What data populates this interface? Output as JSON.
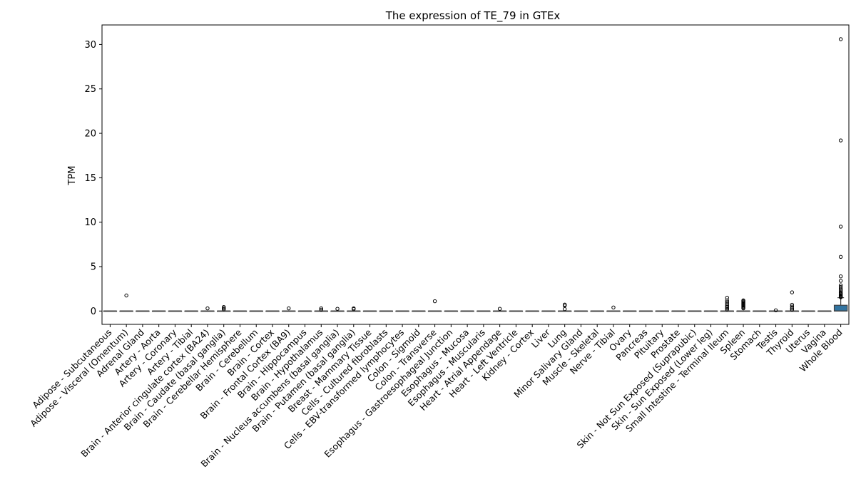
{
  "chart_data": {
    "type": "box",
    "title": "The expression of TE_79 in GTEx",
    "xlabel": "",
    "ylabel": "TPM",
    "ylim": [
      -1.5,
      32.2
    ],
    "yticks": [
      0,
      5,
      10,
      15,
      20,
      25,
      30
    ],
    "grid": false,
    "legend": "none",
    "box_color": "#3274a1",
    "categories": [
      "Adipose - Subcutaneous",
      "Adipose - Visceral (Omentum)",
      "Adrenal Gland",
      "Artery - Aorta",
      "Artery - Coronary",
      "Artery - Tibial",
      "Brain - Anterior cingulate cortex (BA24)",
      "Brain - Caudate (basal ganglia)",
      "Brain - Cerebellar Hemisphere",
      "Brain - Cerebellum",
      "Brain - Cortex",
      "Brain - Frontal Cortex (BA9)",
      "Brain - Hippocampus",
      "Brain - Hypothalamus",
      "Brain - Nucleus accumbens (basal ganglia)",
      "Brain - Putamen (basal ganglia)",
      "Breast - Mammary Tissue",
      "Cells - Cultured fibroblasts",
      "Cells - EBV-transformed lymphocytes",
      "Colon - Sigmoid",
      "Colon - Transverse",
      "Esophagus - Gastroesophageal Junction",
      "Esophagus - Mucosa",
      "Esophagus - Muscularis",
      "Heart - Atrial Appendage",
      "Heart - Left Ventricle",
      "Kidney - Cortex",
      "Liver",
      "Lung",
      "Minor Salivary Gland",
      "Muscle - Skeletal",
      "Nerve - Tibial",
      "Ovary",
      "Pancreas",
      "Pituitary",
      "Prostate",
      "Skin - Not Sun Exposed (Suprapubic)",
      "Skin - Sun Exposed (Lower leg)",
      "Small Intestine - Terminal Ileum",
      "Spleen",
      "Stomach",
      "Testis",
      "Thyroid",
      "Uterus",
      "Vagina",
      "Whole Blood"
    ],
    "boxes": [
      {
        "q1": 0,
        "median": 0,
        "q3": 0,
        "whisker_high": 0,
        "outliers": []
      },
      {
        "q1": 0,
        "median": 0,
        "q3": 0,
        "whisker_high": 0,
        "outliers": [
          1.75
        ]
      },
      {
        "q1": 0,
        "median": 0,
        "q3": 0,
        "whisker_high": 0,
        "outliers": []
      },
      {
        "q1": 0,
        "median": 0,
        "q3": 0,
        "whisker_high": 0,
        "outliers": []
      },
      {
        "q1": 0,
        "median": 0,
        "q3": 0,
        "whisker_high": 0,
        "outliers": []
      },
      {
        "q1": 0,
        "median": 0,
        "q3": 0,
        "whisker_high": 0,
        "outliers": []
      },
      {
        "q1": 0,
        "median": 0,
        "q3": 0,
        "whisker_high": 0,
        "outliers": [
          0.3
        ]
      },
      {
        "q1": 0,
        "median": 0,
        "q3": 0,
        "whisker_high": 0,
        "outliers": [
          0.45,
          0.3,
          0.2
        ]
      },
      {
        "q1": 0,
        "median": 0,
        "q3": 0,
        "whisker_high": 0,
        "outliers": []
      },
      {
        "q1": 0,
        "median": 0,
        "q3": 0,
        "whisker_high": 0,
        "outliers": []
      },
      {
        "q1": 0,
        "median": 0,
        "q3": 0,
        "whisker_high": 0,
        "outliers": []
      },
      {
        "q1": 0,
        "median": 0,
        "q3": 0,
        "whisker_high": 0,
        "outliers": [
          0.3
        ]
      },
      {
        "q1": 0,
        "median": 0,
        "q3": 0,
        "whisker_high": 0,
        "outliers": []
      },
      {
        "q1": 0,
        "median": 0,
        "q3": 0,
        "whisker_high": 0,
        "outliers": [
          0.3,
          0.15
        ]
      },
      {
        "q1": 0,
        "median": 0,
        "q3": 0,
        "whisker_high": 0,
        "outliers": [
          0.25
        ]
      },
      {
        "q1": 0,
        "median": 0,
        "q3": 0,
        "whisker_high": 0,
        "outliers": [
          0.3,
          0.22
        ]
      },
      {
        "q1": 0,
        "median": 0,
        "q3": 0,
        "whisker_high": 0,
        "outliers": []
      },
      {
        "q1": 0,
        "median": 0,
        "q3": 0,
        "whisker_high": 0,
        "outliers": []
      },
      {
        "q1": 0,
        "median": 0,
        "q3": 0,
        "whisker_high": 0,
        "outliers": []
      },
      {
        "q1": 0,
        "median": 0,
        "q3": 0,
        "whisker_high": 0,
        "outliers": []
      },
      {
        "q1": 0,
        "median": 0,
        "q3": 0,
        "whisker_high": 0,
        "outliers": [
          1.1
        ]
      },
      {
        "q1": 0,
        "median": 0,
        "q3": 0,
        "whisker_high": 0,
        "outliers": []
      },
      {
        "q1": 0,
        "median": 0,
        "q3": 0,
        "whisker_high": 0,
        "outliers": []
      },
      {
        "q1": 0,
        "median": 0,
        "q3": 0,
        "whisker_high": 0,
        "outliers": []
      },
      {
        "q1": 0,
        "median": 0,
        "q3": 0,
        "whisker_high": 0,
        "outliers": [
          0.25
        ]
      },
      {
        "q1": 0,
        "median": 0,
        "q3": 0,
        "whisker_high": 0,
        "outliers": []
      },
      {
        "q1": 0,
        "median": 0,
        "q3": 0,
        "whisker_high": 0,
        "outliers": []
      },
      {
        "q1": 0,
        "median": 0,
        "q3": 0,
        "whisker_high": 0,
        "outliers": []
      },
      {
        "q1": 0,
        "median": 0,
        "q3": 0,
        "whisker_high": 0,
        "outliers": [
          0.72,
          0.62,
          0.22
        ]
      },
      {
        "q1": 0,
        "median": 0,
        "q3": 0,
        "whisker_high": 0,
        "outliers": []
      },
      {
        "q1": 0,
        "median": 0,
        "q3": 0,
        "whisker_high": 0,
        "outliers": []
      },
      {
        "q1": 0,
        "median": 0,
        "q3": 0,
        "whisker_high": 0,
        "outliers": [
          0.4
        ]
      },
      {
        "q1": 0,
        "median": 0,
        "q3": 0,
        "whisker_high": 0,
        "outliers": []
      },
      {
        "q1": 0,
        "median": 0,
        "q3": 0,
        "whisker_high": 0,
        "outliers": []
      },
      {
        "q1": 0,
        "median": 0,
        "q3": 0,
        "whisker_high": 0,
        "outliers": []
      },
      {
        "q1": 0,
        "median": 0,
        "q3": 0,
        "whisker_high": 0,
        "outliers": []
      },
      {
        "q1": 0,
        "median": 0,
        "q3": 0,
        "whisker_high": 0,
        "outliers": []
      },
      {
        "q1": 0,
        "median": 0,
        "q3": 0,
        "whisker_high": 0,
        "outliers": []
      },
      {
        "q1": 0,
        "median": 0,
        "q3": 0,
        "whisker_high": 0,
        "outliers": [
          1.5,
          1.2,
          1.0,
          0.8,
          0.6,
          0.45,
          0.3,
          0.18
        ]
      },
      {
        "q1": 0,
        "median": 0,
        "q3": 0,
        "whisker_high": 0,
        "outliers": [
          1.2,
          1.1,
          1.0,
          0.9,
          0.8,
          0.7,
          0.6,
          0.5,
          0.4,
          0.3
        ]
      },
      {
        "q1": 0,
        "median": 0,
        "q3": 0,
        "whisker_high": 0,
        "outliers": []
      },
      {
        "q1": 0,
        "median": 0,
        "q3": 0,
        "whisker_high": 0,
        "outliers": [
          0.08
        ]
      },
      {
        "q1": 0,
        "median": 0,
        "q3": 0,
        "whisker_high": 0,
        "outliers": [
          2.1,
          0.7,
          0.5,
          0.3,
          0.15
        ]
      },
      {
        "q1": 0,
        "median": 0,
        "q3": 0,
        "whisker_high": 0,
        "outliers": []
      },
      {
        "q1": 0,
        "median": 0,
        "q3": 0,
        "whisker_high": 0,
        "outliers": []
      },
      {
        "q1": 0,
        "median": 0,
        "q3": 0.65,
        "whisker_high": 1.5,
        "outliers": [
          30.6,
          19.2,
          9.5,
          6.1,
          3.9,
          3.4,
          2.9,
          2.7,
          2.5,
          2.35,
          2.2,
          2.05,
          1.95,
          1.85,
          1.75,
          1.65,
          1.6,
          1.55
        ]
      }
    ]
  }
}
